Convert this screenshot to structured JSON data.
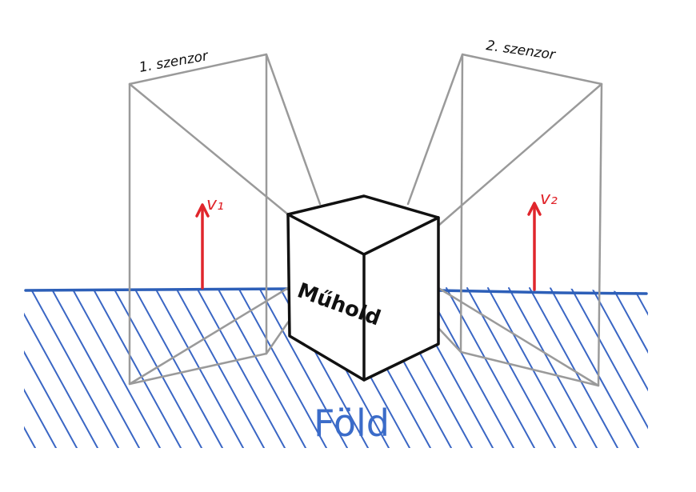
{
  "labels": {
    "sensor1": "1. szenzor",
    "sensor2": "2. szenzor",
    "v1": "v₁",
    "v2": "v₂",
    "satellite": "Műhold",
    "earth": "Föld"
  },
  "colors": {
    "ground_line": "#2d5fb8",
    "hatch": "#3a66c4",
    "frustum": "#9a9a9a",
    "cube": "#111111",
    "velocity": "#e0262c",
    "earth_text": "#3b6cc9",
    "sensor_text": "#111111"
  }
}
